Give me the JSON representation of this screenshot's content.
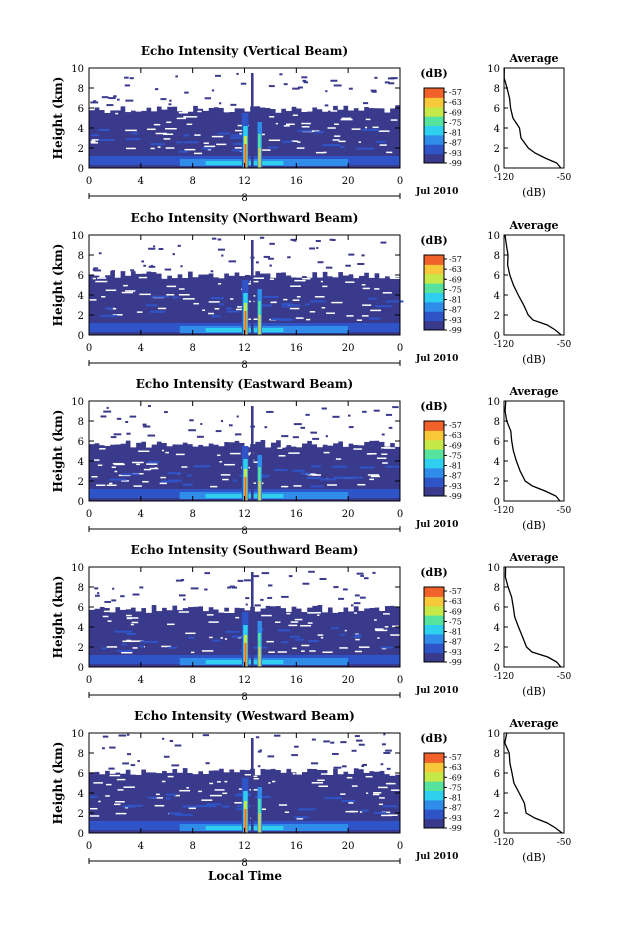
{
  "figure": {
    "bottom_label": "Local Time",
    "date_label": "Jul 2010",
    "day_label": "8"
  },
  "colorbar": {
    "unit_label": "(dB)",
    "ticks": [
      "-57",
      "-63",
      "-69",
      "-75",
      "-81",
      "-87",
      "-93",
      "-99"
    ],
    "colors": [
      "#3a3a8c",
      "#2f54c8",
      "#2f8ce8",
      "#2fd0ef",
      "#55e39d",
      "#c6e94a",
      "#f6c83a",
      "#f0622a"
    ]
  },
  "colors": {
    "background_echo": "#3a3a8c",
    "profile_line": "#000000"
  },
  "chart_data": [
    {
      "type": "heatmap",
      "title": "Echo Intensity (Vertical Beam)",
      "xlabel": "",
      "ylabel": "Height (km)",
      "xticks": [
        "0",
        "4",
        "8",
        "12",
        "16",
        "20",
        "0"
      ],
      "xlim": [
        0,
        24
      ],
      "yticks": [
        "0",
        "2",
        "4",
        "6",
        "8",
        "10"
      ],
      "ylim": [
        0,
        10
      ],
      "color_range_db": [
        -99,
        -57
      ],
      "echo_top_km": 6.3,
      "convection_hours": [
        11.8,
        13.2
      ],
      "profile": {
        "title": "Average",
        "xlabel": "(dB)",
        "xticks": [
          "-120",
          "-50"
        ],
        "xlim": [
          -120,
          -50
        ],
        "height_km": [
          0,
          0.5,
          1,
          1.5,
          2,
          3,
          4,
          5,
          6,
          7,
          8,
          9,
          10
        ],
        "db": [
          -55,
          -60,
          -72,
          -85,
          -92,
          -98,
          -104,
          -108,
          -110,
          -113,
          -116,
          -118,
          -119
        ]
      }
    },
    {
      "type": "heatmap",
      "title": "Echo Intensity (Northward Beam)",
      "xlabel": "",
      "ylabel": "Height (km)",
      "xticks": [
        "0",
        "4",
        "8",
        "12",
        "16",
        "20",
        "0"
      ],
      "xlim": [
        0,
        24
      ],
      "yticks": [
        "0",
        "2",
        "4",
        "6",
        "8",
        "10"
      ],
      "ylim": [
        0,
        10
      ],
      "color_range_db": [
        -99,
        -57
      ],
      "echo_top_km": 6.4,
      "convection_hours": [
        11.8,
        13.2
      ],
      "profile": {
        "title": "Average",
        "xlabel": "(dB)",
        "xticks": [
          "-120",
          "-50"
        ],
        "xlim": [
          -120,
          -50
        ],
        "height_km": [
          0,
          0.5,
          1,
          1.5,
          2,
          3,
          4,
          5,
          6,
          7,
          8,
          9,
          10
        ],
        "db": [
          -53,
          -58,
          -70,
          -84,
          -92,
          -99,
          -105,
          -109,
          -112,
          -115,
          -117,
          -118,
          -119
        ]
      }
    },
    {
      "type": "heatmap",
      "title": "Echo Intensity (Eastward Beam)",
      "xlabel": "",
      "ylabel": "Height (km)",
      "xticks": [
        "0",
        "4",
        "8",
        "12",
        "16",
        "20",
        "0"
      ],
      "xlim": [
        0,
        24
      ],
      "yticks": [
        "0",
        "2",
        "4",
        "6",
        "8",
        "10"
      ],
      "ylim": [
        0,
        10
      ],
      "color_range_db": [
        -99,
        -57
      ],
      "echo_top_km": 6.1,
      "convection_hours": [
        11.8,
        13.2
      ],
      "profile": {
        "title": "Average",
        "xlabel": "(dB)",
        "xticks": [
          "-120",
          "-50"
        ],
        "xlim": [
          -120,
          -50
        ],
        "height_km": [
          0,
          0.5,
          1,
          1.5,
          2,
          3,
          4,
          5,
          6,
          7,
          8,
          9,
          10
        ],
        "db": [
          -56,
          -61,
          -73,
          -86,
          -93,
          -99,
          -104,
          -108,
          -110,
          -113,
          -116,
          -117,
          -119
        ]
      }
    },
    {
      "type": "heatmap",
      "title": "Echo Intensity (Southward Beam)",
      "xlabel": "",
      "ylabel": "Height (km)",
      "xticks": [
        "0",
        "4",
        "8",
        "12",
        "16",
        "20",
        "0"
      ],
      "xlim": [
        0,
        24
      ],
      "yticks": [
        "0",
        "2",
        "4",
        "6",
        "8",
        "10"
      ],
      "ylim": [
        0,
        10
      ],
      "color_range_db": [
        -99,
        -57
      ],
      "echo_top_km": 6.2,
      "convection_hours": [
        11.8,
        13.2
      ],
      "profile": {
        "title": "Average",
        "xlabel": "(dB)",
        "xticks": [
          "-120",
          "-50"
        ],
        "xlim": [
          -120,
          -50
        ],
        "height_km": [
          0,
          0.5,
          1,
          1.5,
          2,
          3,
          4,
          5,
          6,
          7,
          8,
          9,
          10
        ],
        "db": [
          -55,
          -60,
          -71,
          -85,
          -92,
          -98,
          -104,
          -108,
          -111,
          -113,
          -116,
          -118,
          -119
        ]
      }
    },
    {
      "type": "heatmap",
      "title": "Echo Intensity (Westward Beam)",
      "xlabel": "Local Time",
      "ylabel": "Height (km)",
      "xticks": [
        "0",
        "4",
        "8",
        "12",
        "16",
        "20",
        "0"
      ],
      "xlim": [
        0,
        24
      ],
      "yticks": [
        "0",
        "2",
        "4",
        "6",
        "8",
        "10"
      ],
      "ylim": [
        0,
        10
      ],
      "color_range_db": [
        -99,
        -57
      ],
      "echo_top_km": 6.5,
      "convection_hours": [
        11.8,
        13.2
      ],
      "profile": {
        "title": "Average",
        "xlabel": "(dB)",
        "xticks": [
          "-120",
          "-50"
        ],
        "xlim": [
          -120,
          -50
        ],
        "height_km": [
          0,
          0.5,
          1,
          1.5,
          2,
          3,
          4,
          5,
          6,
          7,
          8,
          9,
          10
        ],
        "db": [
          -54,
          -59,
          -70,
          -84,
          -92,
          -98,
          -104,
          -108,
          -111,
          -114,
          -116,
          -118,
          -119
        ]
      }
    }
  ]
}
